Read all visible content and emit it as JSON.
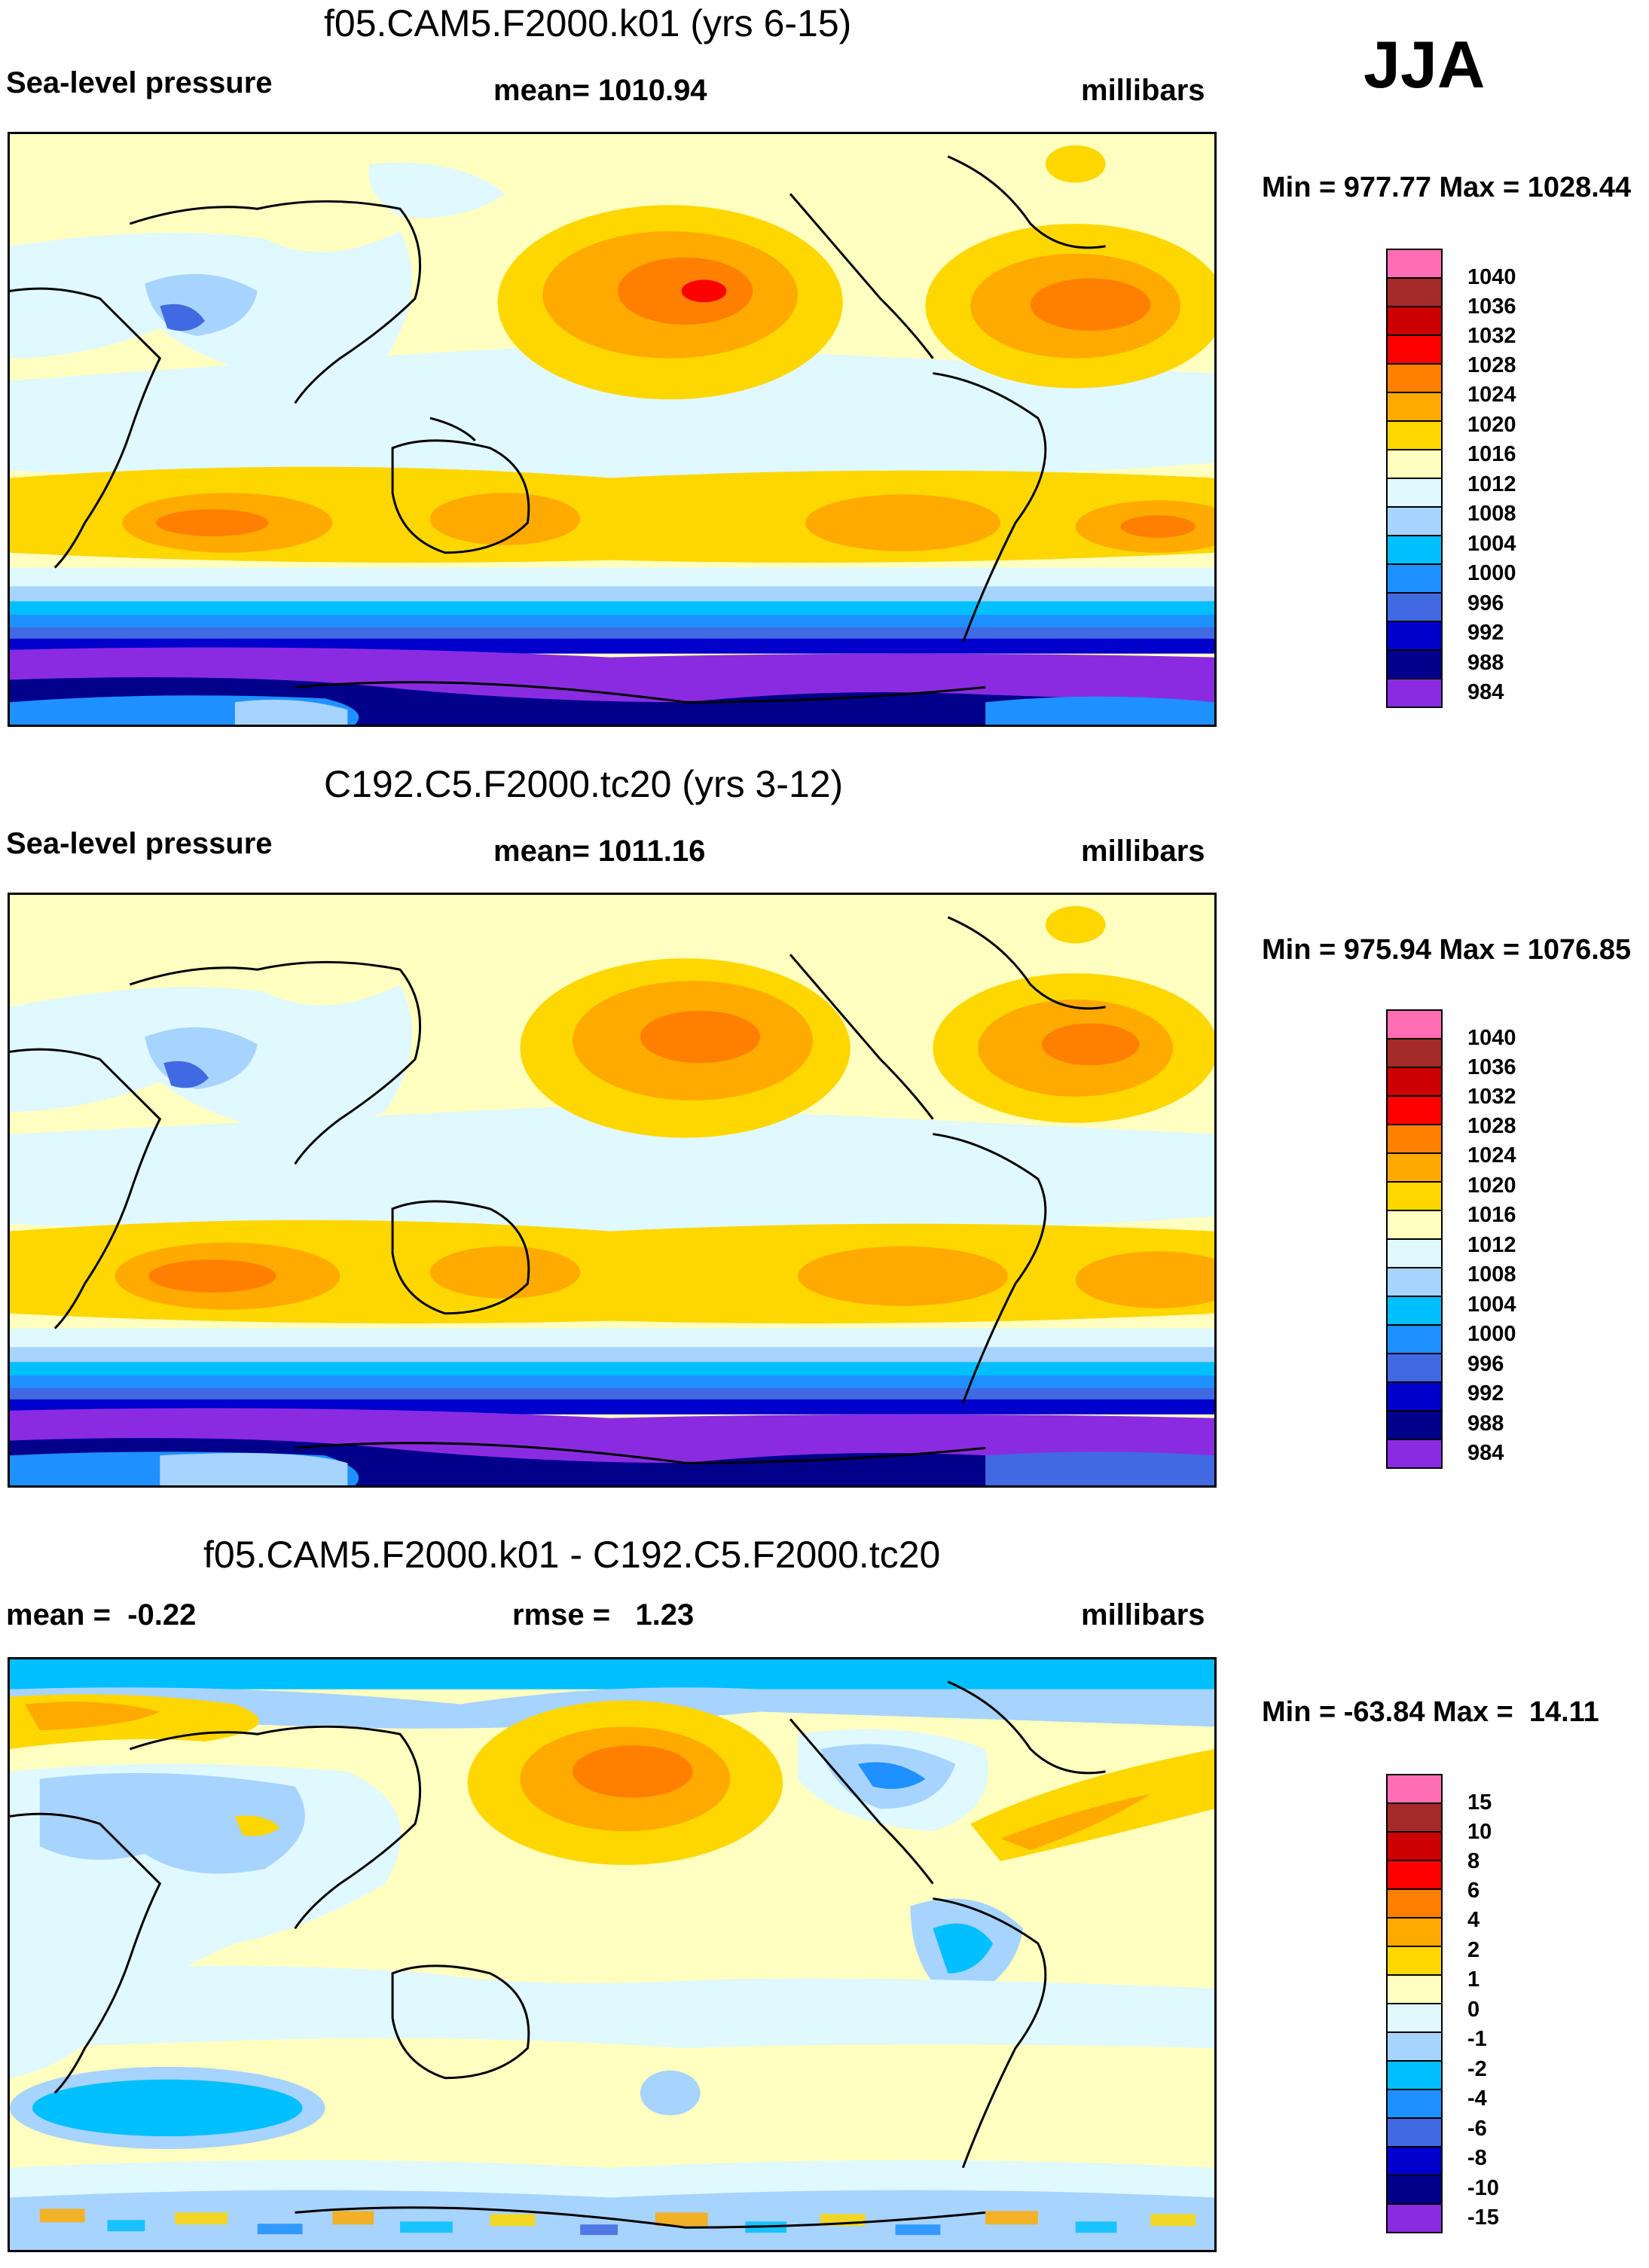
{
  "season": "JJA",
  "panels": [
    {
      "title": "f05.CAM5.F2000.k01 (yrs 6-15)",
      "left_label": "Sea-level pressure",
      "center_label": "mean= 1010.94",
      "right_label": "millibars",
      "minmax": "Min = 977.77 Max = 1028.44",
      "legend": [
        "1040",
        "1036",
        "1032",
        "1028",
        "1024",
        "1020",
        "1016",
        "1012",
        "1008",
        "1004",
        "1000",
        "996",
        "992",
        "988",
        "984"
      ]
    },
    {
      "title": "C192.C5.F2000.tc20 (yrs 3-12)",
      "left_label": "Sea-level pressure",
      "center_label": "mean= 1011.16",
      "right_label": "millibars",
      "minmax": "Min = 975.94 Max = 1076.85",
      "legend": [
        "1040",
        "1036",
        "1032",
        "1028",
        "1024",
        "1020",
        "1016",
        "1012",
        "1008",
        "1004",
        "1000",
        "996",
        "992",
        "988",
        "984"
      ]
    },
    {
      "title": "f05.CAM5.F2000.k01 - C192.C5.F2000.tc20",
      "left_label": "mean =  -0.22",
      "center_label": "rmse =   1.23",
      "right_label": "millibars",
      "minmax": "Min = -63.84 Max =  14.11",
      "legend": [
        "15",
        "10",
        "8",
        "6",
        "4",
        "2",
        "1",
        "0",
        "-1",
        "-2",
        "-4",
        "-6",
        "-8",
        "-10",
        "-15"
      ]
    }
  ],
  "colors": {
    "scale": [
      "#ff6eb4",
      "#a52a2a",
      "#cd0000",
      "#ff0000",
      "#ff7f00",
      "#ffaa00",
      "#ffd700",
      "#ffffc0",
      "#e0f8ff",
      "#a7d3ff",
      "#00bfff",
      "#1e90ff",
      "#4169e1",
      "#0000cd",
      "#00008b",
      "#8a2be2"
    ]
  }
}
